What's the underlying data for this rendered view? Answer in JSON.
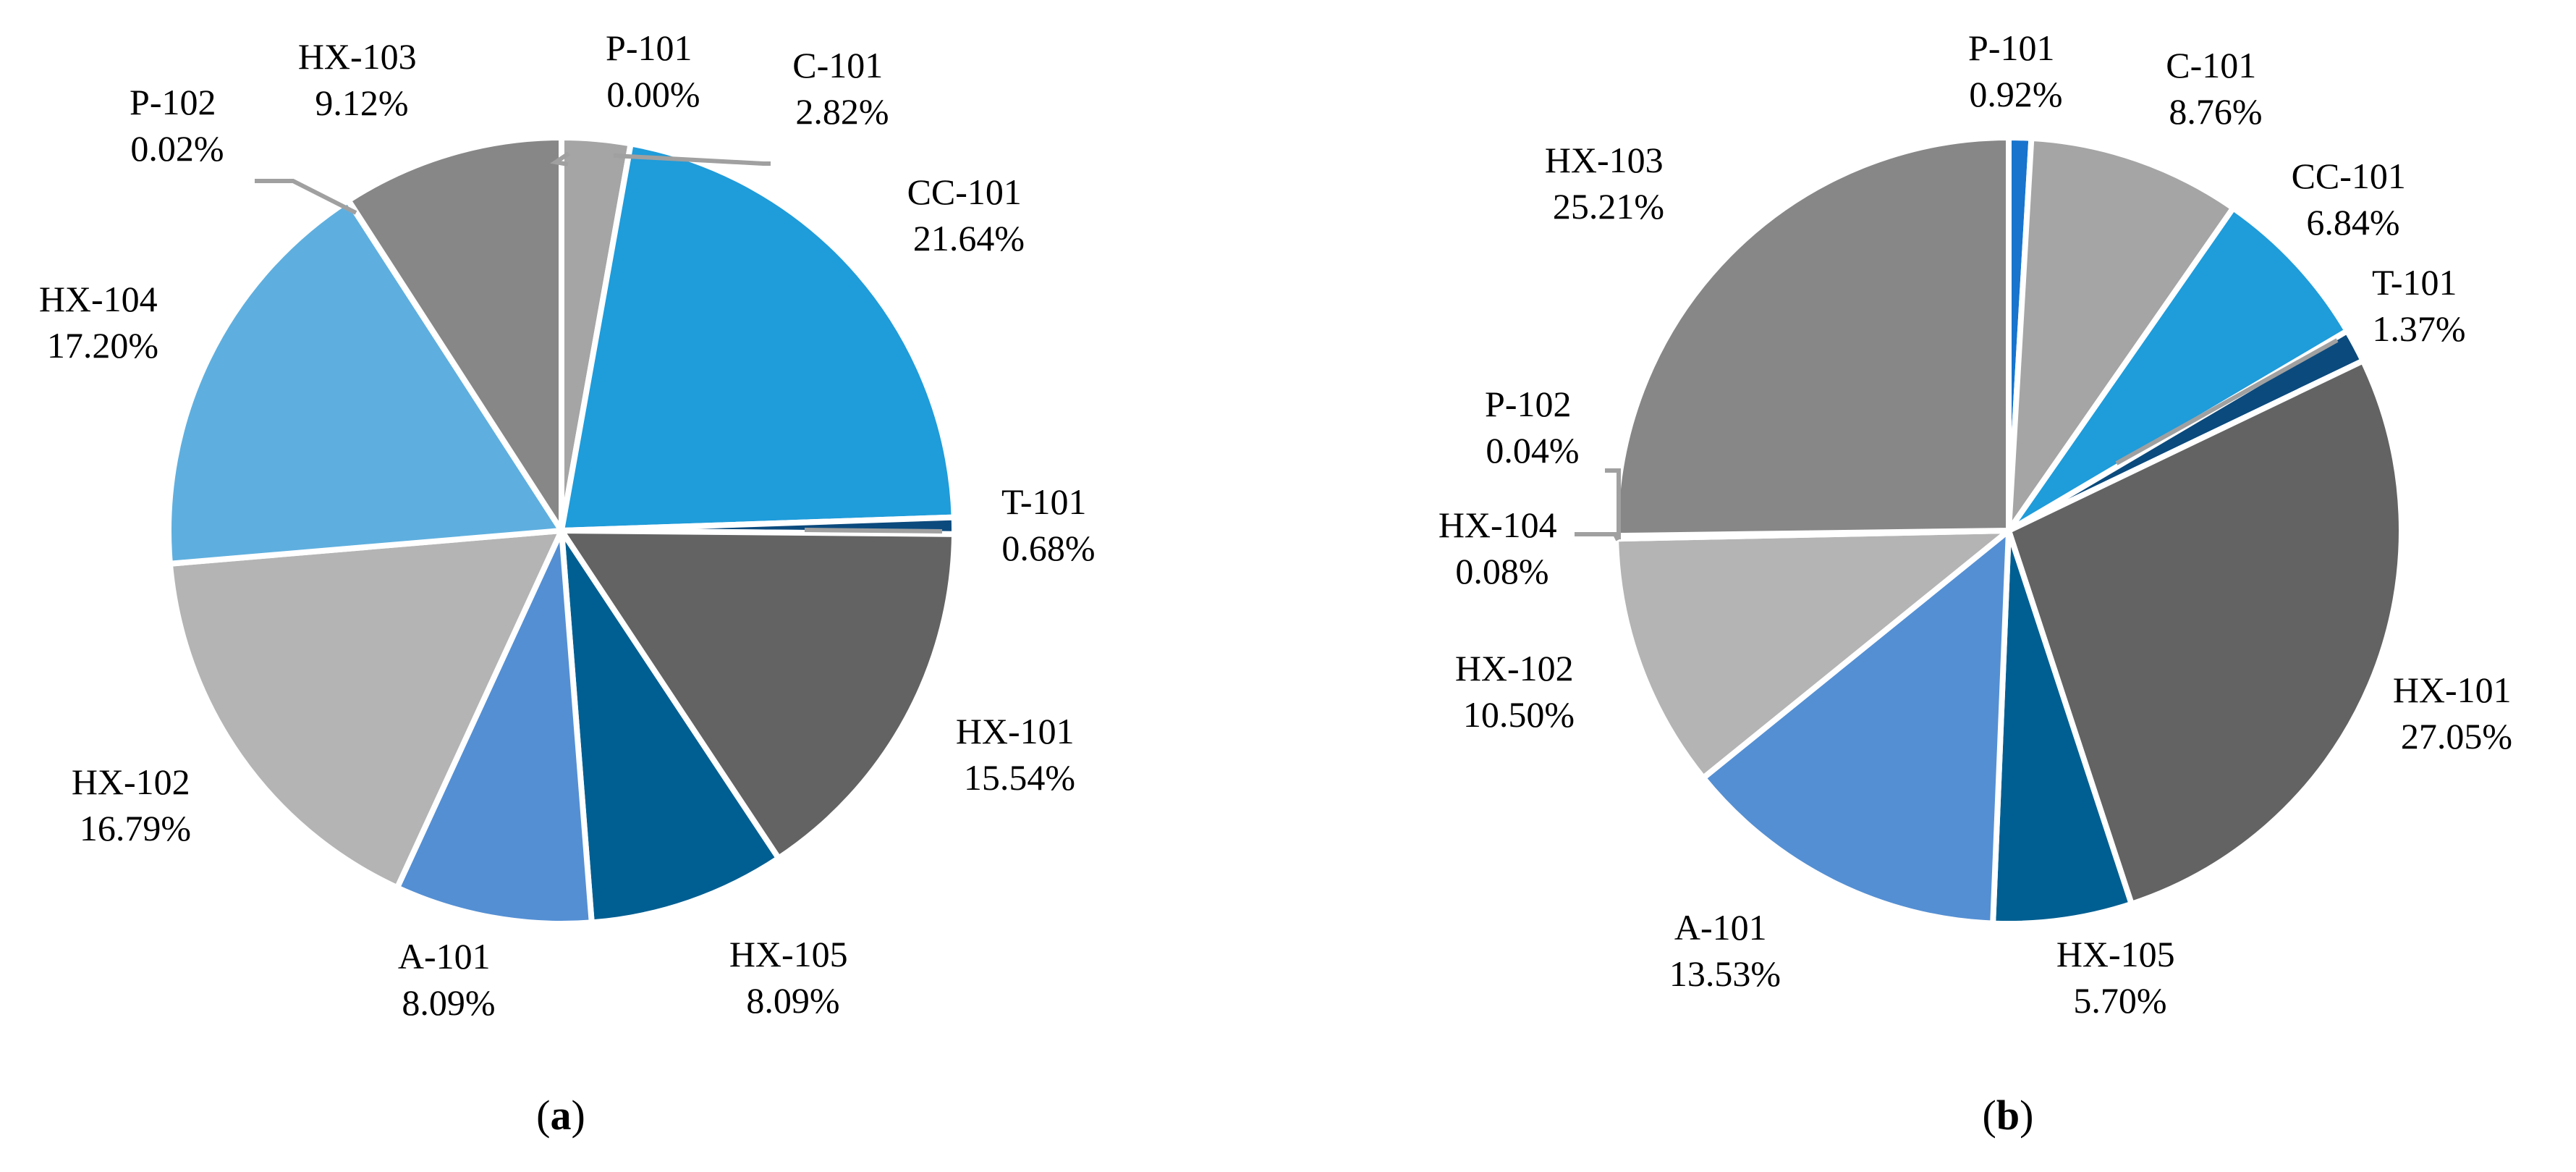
{
  "colors": {
    "P-101": "#1874cd",
    "C-101": "#a5a5a5",
    "CC-101": "#1f9cda",
    "T-101": "#0b4a7d",
    "HX-101": "#636363",
    "HX-105": "#005f92",
    "A-101": "#548fd3",
    "HX-102": "#b4b4b4",
    "HX-104": "#5eafdf",
    "P-102": "#909090",
    "HX-103": "#878787",
    "leader": "#a0a0a0",
    "separator": "#ffffff"
  },
  "chart_data": [
    {
      "type": "pie",
      "panel": "a",
      "caption": {
        "open": "(",
        "letter": "a",
        "close": ")"
      },
      "start": "top, clockwise",
      "slices": [
        {
          "name": "P-101",
          "value": 0.0,
          "label_line1": "P-101",
          "label_line2": "0.00%"
        },
        {
          "name": "C-101",
          "value": 2.82,
          "label_line1": "C-101",
          "label_line2": "2.82%"
        },
        {
          "name": "CC-101",
          "value": 21.64,
          "label_line1": "CC-101",
          "label_line2": "21.64%"
        },
        {
          "name": "T-101",
          "value": 0.68,
          "label_line1": "T-101",
          "label_line2": "0.68%"
        },
        {
          "name": "HX-101",
          "value": 15.54,
          "label_line1": "HX-101",
          "label_line2": "15.54%"
        },
        {
          "name": "HX-105",
          "value": 8.09,
          "label_line1": "HX-105",
          "label_line2": "8.09%"
        },
        {
          "name": "A-101",
          "value": 8.09,
          "label_line1": "A-101",
          "label_line2": "8.09%"
        },
        {
          "name": "HX-102",
          "value": 16.79,
          "label_line1": "HX-102",
          "label_line2": "16.79%"
        },
        {
          "name": "HX-104",
          "value": 17.2,
          "label_line1": "HX-104",
          "label_line2": "17.20%"
        },
        {
          "name": "P-102",
          "value": 0.02,
          "label_line1": "P-102",
          "label_line2": "0.02%"
        },
        {
          "name": "HX-103",
          "value": 9.12,
          "label_line1": "HX-103",
          "label_line2": "9.12%"
        }
      ]
    },
    {
      "type": "pie",
      "panel": "b",
      "caption": {
        "open": "(",
        "letter": "b",
        "close": ")"
      },
      "start": "top, clockwise",
      "slices": [
        {
          "name": "P-101",
          "value": 0.92,
          "label_line1": "P-101",
          "label_line2": "0.92%"
        },
        {
          "name": "C-101",
          "value": 8.76,
          "label_line1": "C-101",
          "label_line2": "8.76%"
        },
        {
          "name": "CC-101",
          "value": 6.84,
          "label_line1": "CC-101",
          "label_line2": "6.84%"
        },
        {
          "name": "T-101",
          "value": 1.37,
          "label_line1": "T-101",
          "label_line2": "1.37%"
        },
        {
          "name": "HX-101",
          "value": 27.05,
          "label_line1": "HX-101",
          "label_line2": "27.05%"
        },
        {
          "name": "HX-105",
          "value": 5.7,
          "label_line1": "HX-105",
          "label_line2": "5.70%"
        },
        {
          "name": "A-101",
          "value": 13.53,
          "label_line1": "A-101",
          "label_line2": "13.53%"
        },
        {
          "name": "HX-102",
          "value": 10.5,
          "label_line1": "HX-102",
          "label_line2": "10.50%"
        },
        {
          "name": "HX-104",
          "value": 0.08,
          "label_line1": "HX-104",
          "label_line2": "0.08%"
        },
        {
          "name": "P-102",
          "value": 0.04,
          "label_line1": "P-102",
          "label_line2": "0.04%"
        },
        {
          "name": "HX-103",
          "value": 25.21,
          "label_line1": "HX-103",
          "label_line2": "25.21%"
        }
      ]
    }
  ]
}
